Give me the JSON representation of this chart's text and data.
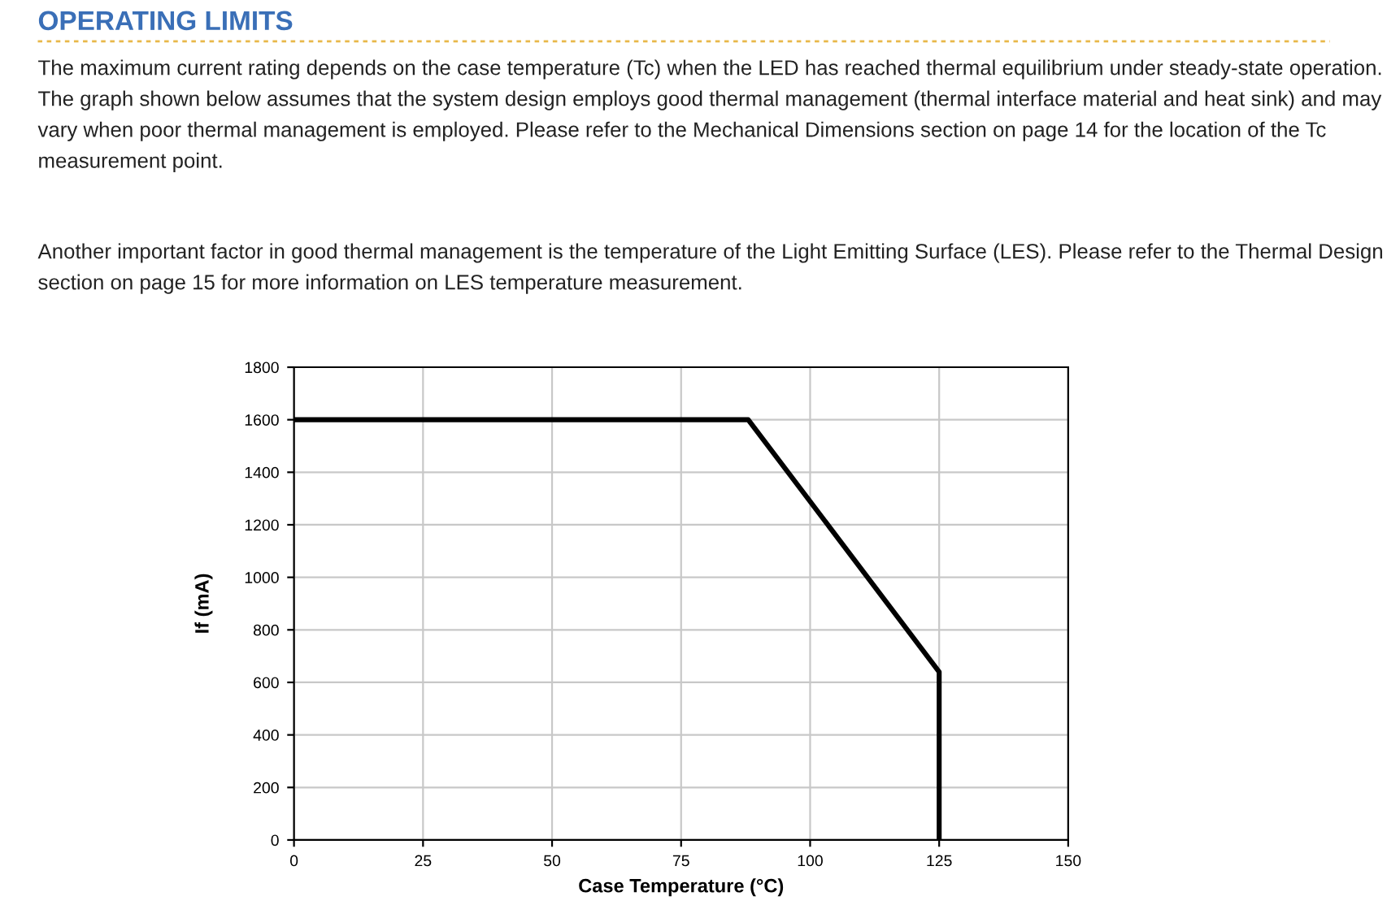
{
  "chart_data": {
    "type": "line",
    "title": "OPERATING LIMITS",
    "annotations": [
      "The maximum current rating depends on the case temperature (Tc) when the LED has reached thermal equilibrium under steady-state operation. The graph shown below assumes that the system design employs good thermal management (thermal interface material and heat sink) and may vary when poor thermal management is employed. Please refer to the Mechanical Dimensions section on page 14 for the location of the Tc measurement point.",
      "Another important factor in good thermal management is the temperature of the Light Emitting Surface (LES). Please refer to the Thermal Design section on page 15 for more information on LES temperature measurement."
    ],
    "xlabel": "Case Temperature (°C)",
    "ylabel": "If (mA)",
    "series": [
      {
        "color": "#000000",
        "x": [
          0,
          88,
          125,
          125
        ],
        "values": [
          1600,
          1600,
          640,
          0
        ]
      }
    ],
    "xlim": [
      0,
      150
    ],
    "xticks": [
      0,
      25,
      50,
      75,
      100,
      125,
      150
    ],
    "ylim": [
      0,
      1800
    ],
    "yticks": [
      0,
      200,
      400,
      600,
      800,
      1000,
      1200,
      1400,
      1600,
      1800
    ],
    "grid": true,
    "marker": "none",
    "line_style": "solid"
  }
}
